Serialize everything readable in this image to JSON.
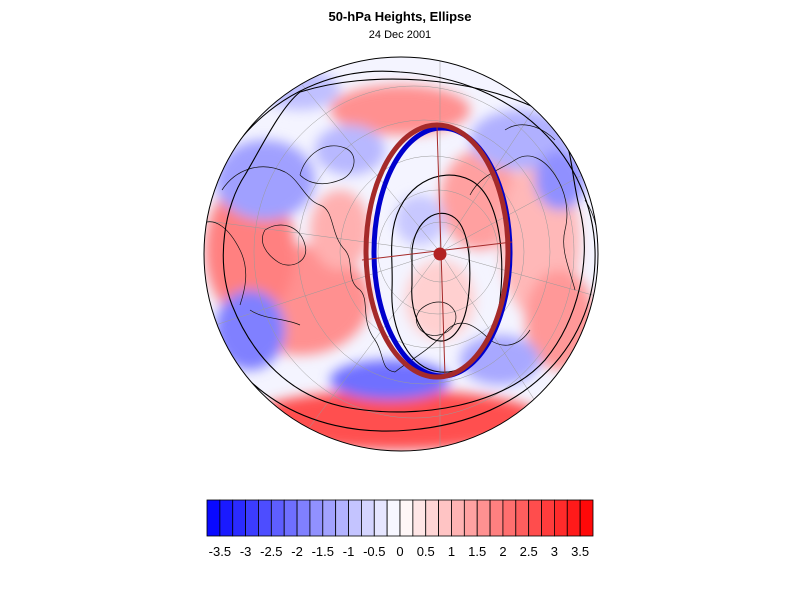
{
  "header": {
    "title": "50-hPa Heights, Ellipse",
    "date": "24 Dec 2001"
  },
  "map": {
    "projection": "orthographic-polar",
    "field": "normalized 50-hPa height anomaly",
    "contours": "black height contours",
    "ellipse_colors": {
      "fitted": "#a52a2a",
      "outline": "#0000cd"
    },
    "center_marker_color": "#b22222"
  },
  "colorbar": {
    "levels": [
      -3.75,
      -3.5,
      -3.25,
      -3,
      -2.75,
      -2.5,
      -2.25,
      -2,
      -1.75,
      -1.5,
      -1.25,
      -1,
      -0.75,
      -0.5,
      -0.25,
      0,
      0.25,
      0.5,
      0.75,
      1,
      1.25,
      1.5,
      1.75,
      2,
      2.25,
      2.5,
      2.75,
      3,
      3.25,
      3.5,
      3.75
    ],
    "tick_labels": [
      "-3.5",
      "-3",
      "-2.5",
      "-2",
      "-1.5",
      "-1",
      "-0.5",
      "0",
      "0.5",
      "1",
      "1.5",
      "2",
      "2.5",
      "3",
      "3.5"
    ],
    "negative_color": "#0000ff",
    "positive_color": "#ff0000"
  }
}
